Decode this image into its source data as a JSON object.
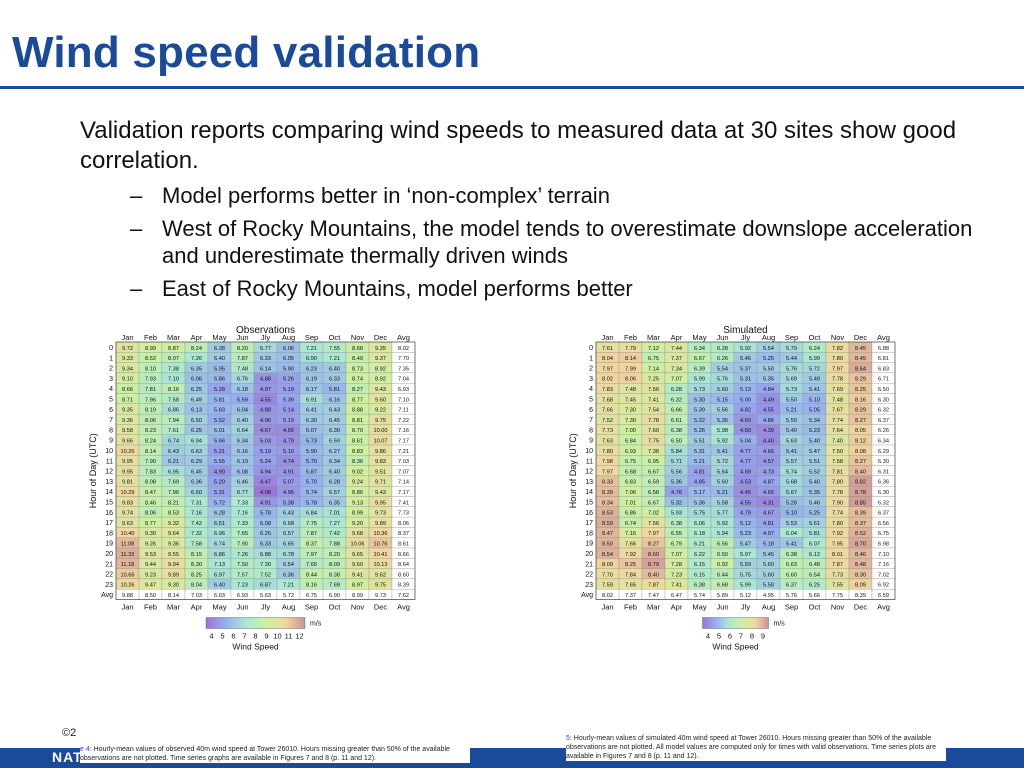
{
  "slide": {
    "title": "Wind speed validation",
    "lead": "Validation reports comparing wind speeds to measured data at 30 sites show good correlation.",
    "subs": [
      "Model performs better in ‘non-complex’ terrain",
      "West of Rocky Mountains, the model tends to overestimate downslope acceleration and underestimate thermally driven winds",
      "East of Rocky Mountains, model performs better"
    ],
    "dash": "–",
    "copyright": "©2",
    "footer": "NAT"
  },
  "captions": {
    "left_label": "e 4:",
    "left_text": "Hourly-mean values of observed 40m wind speed at Tower 26010. Hours missing greater than 50% of the available observations are not plotted. Time series graphs are available in Figures 7 and 8 (p. 11 and 12).",
    "right_label": "5:",
    "right_text": "Hourly-mean values of simulated 40m wind speed at Tower 26010. Hours missing greater than 50% of the available observations are not plotted. All model values are computed only for times with valid observations. Time series plots are available in Figures 7 and 8 (p. 11 and 12)."
  },
  "colors": {
    "accent": "#1a4a9a",
    "caption_label": "#3a3adf"
  },
  "chart_data": [
    {
      "type": "heatmap",
      "title": "Observations",
      "xlabel": "",
      "ylabel": "Hour of Day (UTC)",
      "colorbar_label": "Wind Speed",
      "colorbar_unit": "m/s",
      "colorbar_ticks": [
        "4",
        "5",
        "6",
        "7",
        "8",
        "9",
        "10",
        "11",
        "12"
      ],
      "color_range": [
        4,
        12
      ],
      "columns": [
        "Jan",
        "Feb",
        "Mar",
        "Apr",
        "May",
        "Jun",
        "Jly",
        "Aug",
        "Sep",
        "Oct",
        "Nov",
        "Dec",
        "Avg"
      ],
      "rows": [
        "0",
        "1",
        "2",
        "3",
        "4",
        "5",
        "6",
        "7",
        "8",
        "9",
        "10",
        "11",
        "12",
        "13",
        "14",
        "15",
        "16",
        "17",
        "18",
        "19",
        "20",
        "21",
        "22",
        "23",
        "Avg"
      ],
      "values": [
        [
          "9.72",
          "8.99",
          "8.87",
          "8.24",
          "6.38",
          "8.20",
          "6.77",
          "6.06",
          "7.21",
          "7.55",
          "8.68",
          "9.35",
          "8.02"
        ],
        [
          "9.33",
          "8.52",
          "8.07",
          "7.26",
          "6.40",
          "7.87",
          "6.33",
          "6.05",
          "6.90",
          "7.21",
          "8.49",
          "9.37",
          "7.70"
        ],
        [
          "9.34",
          "8.10",
          "7.38",
          "6.35",
          "5.95",
          "7.48",
          "6.14",
          "5.90",
          "6.23",
          "6.40",
          "8.73",
          "8.92",
          "7.35"
        ],
        [
          "9.10",
          "7.93",
          "7.10",
          "6.06",
          "5.86",
          "6.76",
          "4.88",
          "5.26",
          "6.19",
          "6.33",
          "8.74",
          "8.92",
          "7.04"
        ],
        [
          "8.66",
          "7.81",
          "8.16",
          "6.25",
          "5.28",
          "6.18",
          "4.97",
          "5.19",
          "6.17",
          "5.81",
          "8.27",
          "9.43",
          "6.93"
        ],
        [
          "8.71",
          "7.96",
          "7.58",
          "6.49",
          "5.81",
          "5.59",
          "4.55",
          "5.39",
          "6.91",
          "6.16",
          "8.77",
          "9.60",
          "7.10"
        ],
        [
          "9.35",
          "8.19",
          "6.86",
          "6.13",
          "5.83",
          "6.04",
          "4.88",
          "5.14",
          "6.41",
          "6.43",
          "8.88",
          "9.22",
          "7.11"
        ],
        [
          "9.36",
          "8.06",
          "7.94",
          "6.50",
          "5.52",
          "6.40",
          "4.96",
          "5.19",
          "6.30",
          "6.45",
          "8.81",
          "9.75",
          "7.22"
        ],
        [
          "9.58",
          "8.23",
          "7.61",
          "6.25",
          "6.01",
          "6.64",
          "4.67",
          "4.65",
          "6.07",
          "6.30",
          "8.70",
          "10.00",
          "7.16"
        ],
        [
          "9.66",
          "8.24",
          "6.74",
          "6.94",
          "5.66",
          "6.34",
          "5.03",
          "4.79",
          "5.73",
          "6.59",
          "8.61",
          "10.07",
          "7.17"
        ],
        [
          "10.26",
          "8.14",
          "6.43",
          "6.63",
          "5.21",
          "6.16",
          "5.19",
          "5.10",
          "5.90",
          "6.27",
          "8.83",
          "9.86",
          "7.21"
        ],
        [
          "9.95",
          "7.90",
          "6.21",
          "6.29",
          "5.55",
          "6.19",
          "5.24",
          "4.74",
          "5.70",
          "6.34",
          "8.36",
          "9.83",
          "7.03"
        ],
        [
          "9.95",
          "7.83",
          "6.95",
          "6.45",
          "4.90",
          "6.08",
          "4.94",
          "4.91",
          "5.87",
          "6.40",
          "9.02",
          "9.51",
          "7.07"
        ],
        [
          "9.81",
          "8.08",
          "7.69",
          "6.36",
          "5.20",
          "6.46",
          "4.47",
          "5.07",
          "5.70",
          "6.28",
          "9.24",
          "9.71",
          "7.14"
        ],
        [
          "10.29",
          "8.47",
          "7.96",
          "6.60",
          "5.31",
          "6.77",
          "4.08",
          "4.95",
          "5.74",
          "6.57",
          "8.86",
          "9.43",
          "7.17"
        ],
        [
          "9.83",
          "8.46",
          "8.21",
          "7.31",
          "5.72",
          "7.33",
          "4.91",
          "5.38",
          "5.78",
          "6.35",
          "9.13",
          "9.95",
          "7.41"
        ],
        [
          "9.74",
          "8.06",
          "8.53",
          "7.16",
          "6.28",
          "7.16",
          "5.78",
          "6.43",
          "6.84",
          "7.01",
          "8.99",
          "9.73",
          "7.73"
        ],
        [
          "9.63",
          "8.77",
          "9.32",
          "7.42",
          "6.51",
          "7.33",
          "6.08",
          "6.68",
          "7.75",
          "7.27",
          "9.20",
          "9.89",
          "8.06"
        ],
        [
          "10.40",
          "9.30",
          "9.64",
          "7.32",
          "6.96",
          "7.65",
          "6.26",
          "6.57",
          "7.87",
          "7.42",
          "9.68",
          "10.36",
          "8.37"
        ],
        [
          "11.08",
          "9.26",
          "9.36",
          "7.58",
          "6.74",
          "7.90",
          "6.33",
          "6.65",
          "8.37",
          "7.88",
          "10.06",
          "10.76",
          "8.61"
        ],
        [
          "11.33",
          "9.53",
          "9.55",
          "8.15",
          "6.86",
          "7.26",
          "6.88",
          "6.78",
          "7.97",
          "8.20",
          "9.65",
          "10.41",
          "8.66"
        ],
        [
          "11.18",
          "9.44",
          "9.94",
          "8.30",
          "7.13",
          "7.50",
          "7.30",
          "6.54",
          "7.65",
          "8.09",
          "9.60",
          "10.13",
          "8.64"
        ],
        [
          "10.66",
          "9.23",
          "9.89",
          "8.25",
          "6.97",
          "7.57",
          "7.52",
          "6.36",
          "8.44",
          "8.38",
          "9.41",
          "9.62",
          "8.60"
        ],
        [
          "10.26",
          "9.47",
          "9.30",
          "8.04",
          "6.40",
          "7.23",
          "6.87",
          "7.21",
          "8.16",
          "7.69",
          "8.97",
          "9.75",
          "8.39"
        ],
        [
          "9.88",
          "8.50",
          "8.14",
          "7.03",
          "6.03",
          "6.93",
          "5.63",
          "5.72",
          "6.75",
          "6.90",
          "8.99",
          "9.73",
          "7.62"
        ]
      ]
    },
    {
      "type": "heatmap",
      "title": "Simulated",
      "xlabel": "",
      "ylabel": "Hour of Day (UTC)",
      "colorbar_label": "Wind Speed",
      "colorbar_unit": "m/s",
      "colorbar_ticks": [
        "4",
        "5",
        "6",
        "7",
        "8",
        "9"
      ],
      "color_range": [
        4,
        9
      ],
      "columns": [
        "Jan",
        "Feb",
        "Mar",
        "Apr",
        "May",
        "Jun",
        "Jly",
        "Aug",
        "Sep",
        "Oct",
        "Nov",
        "Dec",
        "Avg"
      ],
      "rows": [
        "0",
        "1",
        "2",
        "3",
        "4",
        "5",
        "6",
        "7",
        "8",
        "9",
        "10",
        "11",
        "12",
        "13",
        "14",
        "15",
        "16",
        "17",
        "18",
        "19",
        "20",
        "21",
        "22",
        "23",
        "Avg"
      ],
      "values": [
        [
          "7.61",
          "7.79",
          "7.12",
          "7.44",
          "6.34",
          "6.28",
          "5.92",
          "5.54",
          "5.79",
          "6.24",
          "7.82",
          "8.45",
          "6.88"
        ],
        [
          "8.04",
          "8.14",
          "6.75",
          "7.37",
          "6.67",
          "6.26",
          "5.46",
          "5.25",
          "5.44",
          "5.99",
          "7.80",
          "8.45",
          "6.81"
        ],
        [
          "7.97",
          "7.99",
          "7.14",
          "7.34",
          "6.39",
          "5.54",
          "5.37",
          "5.50",
          "5.76",
          "5.72",
          "7.97",
          "8.64",
          "6.83"
        ],
        [
          "8.02",
          "8.06",
          "7.25",
          "7.07",
          "5.99",
          "5.76",
          "5.31",
          "5.35",
          "5.69",
          "5.49",
          "7.78",
          "8.29",
          "6.71"
        ],
        [
          "7.83",
          "7.48",
          "7.56",
          "6.28",
          "5.73",
          "5.60",
          "5.13",
          "4.84",
          "5.73",
          "5.41",
          "7.69",
          "8.25",
          "6.50"
        ],
        [
          "7.68",
          "7.45",
          "7.41",
          "6.32",
          "5.30",
          "5.15",
          "5.00",
          "4.49",
          "5.50",
          "5.10",
          "7.48",
          "8.16",
          "6.30"
        ],
        [
          "7.66",
          "7.30",
          "7.54",
          "6.66",
          "5.39",
          "5.56",
          "4.82",
          "4.55",
          "5.21",
          "5.05",
          "7.67",
          "8.29",
          "6.32"
        ],
        [
          "7.52",
          "7.30",
          "7.78",
          "6.61",
          "5.22",
          "5.35",
          "4.60",
          "4.86",
          "5.50",
          "5.34",
          "7.74",
          "8.27",
          "6.37"
        ],
        [
          "7.73",
          "7.00",
          "7.60",
          "6.38",
          "5.26",
          "5.98",
          "4.50",
          "4.39",
          "5.40",
          "5.23",
          "7.64",
          "8.05",
          "6.26"
        ],
        [
          "7.63",
          "6.84",
          "7.75",
          "6.50",
          "5.51",
          "5.92",
          "5.04",
          "4.40",
          "5.63",
          "5.40",
          "7.40",
          "8.12",
          "6.34"
        ],
        [
          "7.80",
          "6.93",
          "7.38",
          "5.84",
          "5.31",
          "5.41",
          "4.77",
          "4.66",
          "5.41",
          "5.47",
          "7.50",
          "8.08",
          "6.29"
        ],
        [
          "7.98",
          "6.75",
          "6.95",
          "5.71",
          "5.21",
          "5.72",
          "4.77",
          "4.57",
          "5.57",
          "5.51",
          "7.58",
          "8.27",
          "6.30"
        ],
        [
          "7.97",
          "6.68",
          "6.67",
          "5.56",
          "4.81",
          "5.64",
          "4.68",
          "4.73",
          "5.74",
          "5.52",
          "7.81",
          "8.40",
          "6.31"
        ],
        [
          "8.33",
          "6.83",
          "6.59",
          "5.36",
          "4.85",
          "5.60",
          "4.53",
          "4.87",
          "5.68",
          "5.40",
          "7.80",
          "8.82",
          "6.36"
        ],
        [
          "8.39",
          "7.06",
          "6.58",
          "4.76",
          "5.17",
          "5.21",
          "4.45",
          "4.65",
          "5.67",
          "5.35",
          "7.78",
          "8.78",
          "6.30"
        ],
        [
          "8.34",
          "7.01",
          "6.67",
          "5.32",
          "5.36",
          "5.58",
          "4.55",
          "4.31",
          "5.28",
          "5.46",
          "7.90",
          "8.85",
          "6.32"
        ],
        [
          "8.53",
          "6.86",
          "7.02",
          "5.93",
          "5.75",
          "5.77",
          "4.79",
          "4.67",
          "5.10",
          "5.25",
          "7.74",
          "8.39",
          "6.37"
        ],
        [
          "8.59",
          "6.74",
          "7.56",
          "6.38",
          "6.06",
          "5.92",
          "5.12",
          "4.81",
          "5.53",
          "5.61",
          "7.80",
          "8.37",
          "6.56"
        ],
        [
          "8.47",
          "7.16",
          "7.97",
          "6.55",
          "6.18",
          "5.94",
          "5.23",
          "4.97",
          "6.04",
          "5.81",
          "7.92",
          "8.52",
          "6.75"
        ],
        [
          "8.50",
          "7.66",
          "8.27",
          "6.79",
          "6.21",
          "6.56",
          "5.47",
          "5.18",
          "5.41",
          "6.07",
          "7.95",
          "8.70",
          "6.98"
        ],
        [
          "8.54",
          "7.92",
          "8.60",
          "7.07",
          "6.22",
          "6.50",
          "5.97",
          "5.45",
          "6.38",
          "6.12",
          "8.01",
          "8.46",
          "7.10"
        ],
        [
          "8.09",
          "8.25",
          "8.79",
          "7.28",
          "6.15",
          "6.92",
          "5.59",
          "5.60",
          "6.63",
          "6.48",
          "7.87",
          "8.48",
          "7.16"
        ],
        [
          "7.70",
          "7.84",
          "8.40",
          "7.23",
          "6.15",
          "6.44",
          "5.75",
          "5.60",
          "6.60",
          "6.54",
          "7.73",
          "8.30",
          "7.02"
        ],
        [
          "7.59",
          "7.65",
          "7.87",
          "7.41",
          "6.38",
          "6.68",
          "5.99",
          "5.58",
          "6.37",
          "6.25",
          "7.55",
          "8.09",
          "6.92"
        ],
        [
          "8.02",
          "7.37",
          "7.47",
          "6.47",
          "5.74",
          "5.89",
          "5.12",
          "4.95",
          "5.76",
          "5.66",
          "7.75",
          "8.39",
          "6.59"
        ]
      ]
    }
  ]
}
